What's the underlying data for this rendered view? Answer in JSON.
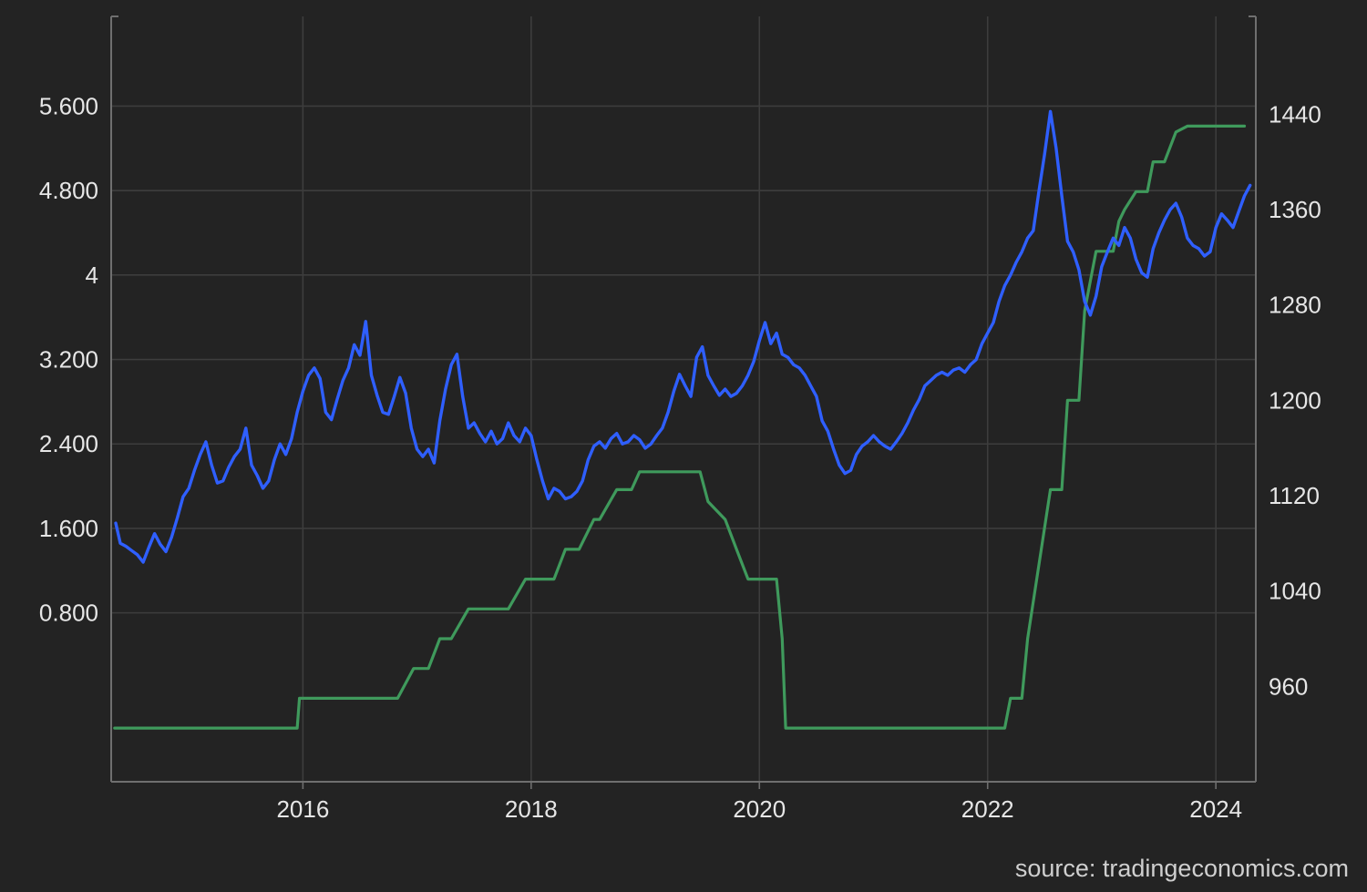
{
  "source_label": "source: tradingeconomics.com",
  "colors": {
    "background": "#232323",
    "grid": "#3d3d3d",
    "axis": "#6f6f6f",
    "tick_text": "#e6e6e6",
    "series_blue": "#2f5fff",
    "series_green": "#3f9a5c"
  },
  "chart_data": {
    "type": "line",
    "grid": true,
    "xlabel": "",
    "ylabel_left": "",
    "ylabel_right": "",
    "x_range": [
      2014.32,
      2024.35
    ],
    "x_ticks": [
      2016,
      2018,
      2020,
      2022,
      2024
    ],
    "x_tick_labels": [
      "2016",
      "2018",
      "2020",
      "2022",
      "2024"
    ],
    "y_left": {
      "range": [
        -0.8,
        6.45
      ],
      "ticks": [
        0.8,
        1.6,
        2.4,
        3.2,
        4,
        4.8,
        5.6
      ],
      "tick_labels": [
        "0.800",
        "1.600",
        "2.400",
        "3.200",
        "4",
        "4.800",
        "5.600"
      ]
    },
    "y_right": {
      "range": [
        880,
        1522
      ],
      "ticks": [
        960,
        1040,
        1120,
        1200,
        1280,
        1360,
        1440
      ],
      "tick_labels": [
        "960",
        "1040",
        "1120",
        "1200",
        "1280",
        "1360",
        "1440"
      ]
    },
    "series": [
      {
        "axis": "left",
        "color": "#2f5fff",
        "x": [
          2014.36,
          2014.4,
          2014.45,
          2014.5,
          2014.55,
          2014.6,
          2014.65,
          2014.7,
          2014.75,
          2014.8,
          2014.85,
          2014.9,
          2014.95,
          2015.0,
          2015.05,
          2015.1,
          2015.15,
          2015.2,
          2015.25,
          2015.3,
          2015.35,
          2015.4,
          2015.45,
          2015.5,
          2015.55,
          2015.6,
          2015.65,
          2015.7,
          2015.75,
          2015.8,
          2015.85,
          2015.9,
          2015.95,
          2016.0,
          2016.05,
          2016.1,
          2016.15,
          2016.2,
          2016.25,
          2016.3,
          2016.35,
          2016.4,
          2016.45,
          2016.5,
          2016.55,
          2016.6,
          2016.65,
          2016.7,
          2016.75,
          2016.8,
          2016.85,
          2016.9,
          2016.95,
          2017.0,
          2017.05,
          2017.1,
          2017.15,
          2017.2,
          2017.25,
          2017.3,
          2017.35,
          2017.4,
          2017.45,
          2017.5,
          2017.55,
          2017.6,
          2017.65,
          2017.7,
          2017.75,
          2017.8,
          2017.85,
          2017.9,
          2017.95,
          2018.0,
          2018.05,
          2018.1,
          2018.15,
          2018.2,
          2018.25,
          2018.3,
          2018.35,
          2018.4,
          2018.45,
          2018.5,
          2018.55,
          2018.6,
          2018.65,
          2018.7,
          2018.75,
          2018.8,
          2018.85,
          2018.9,
          2018.95,
          2019.0,
          2019.05,
          2019.1,
          2019.15,
          2019.2,
          2019.25,
          2019.3,
          2019.35,
          2019.4,
          2019.45,
          2019.5,
          2019.55,
          2019.6,
          2019.65,
          2019.7,
          2019.75,
          2019.8,
          2019.85,
          2019.9,
          2019.95,
          2020.0,
          2020.05,
          2020.1,
          2020.15,
          2020.2,
          2020.25,
          2020.3,
          2020.35,
          2020.4,
          2020.45,
          2020.5,
          2020.55,
          2020.6,
          2020.65,
          2020.7,
          2020.75,
          2020.8,
          2020.85,
          2020.9,
          2020.95,
          2021.0,
          2021.05,
          2021.1,
          2021.15,
          2021.2,
          2021.25,
          2021.3,
          2021.35,
          2021.4,
          2021.45,
          2021.5,
          2021.55,
          2021.6,
          2021.65,
          2021.7,
          2021.75,
          2021.8,
          2021.85,
          2021.9,
          2021.95,
          2022.0,
          2022.05,
          2022.1,
          2022.15,
          2022.2,
          2022.25,
          2022.3,
          2022.35,
          2022.4,
          2022.45,
          2022.5,
          2022.55,
          2022.6,
          2022.65,
          2022.7,
          2022.75,
          2022.8,
          2022.85,
          2022.9,
          2022.95,
          2023.0,
          2023.05,
          2023.1,
          2023.15,
          2023.2,
          2023.25,
          2023.3,
          2023.35,
          2023.4,
          2023.45,
          2023.5,
          2023.55,
          2023.6,
          2023.65,
          2023.7,
          2023.75,
          2023.8,
          2023.85,
          2023.9,
          2023.95,
          2024.0,
          2024.05,
          2024.1,
          2024.15,
          2024.2,
          2024.25,
          2024.3
        ],
        "values": [
          1.65,
          1.46,
          1.43,
          1.39,
          1.35,
          1.28,
          1.42,
          1.55,
          1.45,
          1.38,
          1.52,
          1.7,
          1.9,
          1.98,
          2.15,
          2.3,
          2.42,
          2.2,
          2.03,
          2.05,
          2.18,
          2.28,
          2.35,
          2.55,
          2.2,
          2.1,
          1.98,
          2.05,
          2.25,
          2.4,
          2.3,
          2.45,
          2.7,
          2.9,
          3.05,
          3.12,
          3.02,
          2.7,
          2.63,
          2.82,
          3.0,
          3.12,
          3.34,
          3.24,
          3.56,
          3.05,
          2.86,
          2.7,
          2.68,
          2.85,
          3.03,
          2.88,
          2.55,
          2.35,
          2.28,
          2.35,
          2.22,
          2.62,
          2.92,
          3.15,
          3.25,
          2.85,
          2.55,
          2.6,
          2.5,
          2.42,
          2.52,
          2.4,
          2.45,
          2.6,
          2.48,
          2.42,
          2.55,
          2.48,
          2.25,
          2.05,
          1.88,
          1.98,
          1.95,
          1.88,
          1.9,
          1.95,
          2.05,
          2.25,
          2.38,
          2.42,
          2.36,
          2.45,
          2.5,
          2.4,
          2.42,
          2.48,
          2.44,
          2.36,
          2.4,
          2.48,
          2.55,
          2.7,
          2.9,
          3.06,
          2.95,
          2.85,
          3.22,
          3.32,
          3.05,
          2.95,
          2.86,
          2.92,
          2.85,
          2.88,
          2.95,
          3.05,
          3.18,
          3.38,
          3.55,
          3.35,
          3.45,
          3.25,
          3.22,
          3.15,
          3.12,
          3.05,
          2.95,
          2.85,
          2.62,
          2.52,
          2.35,
          2.2,
          2.12,
          2.15,
          2.3,
          2.38,
          2.42,
          2.48,
          2.42,
          2.38,
          2.35,
          2.42,
          2.5,
          2.6,
          2.72,
          2.82,
          2.95,
          3.0,
          3.05,
          3.08,
          3.05,
          3.1,
          3.12,
          3.08,
          3.15,
          3.2,
          3.35,
          3.45,
          3.55,
          3.75,
          3.9,
          4.0,
          4.12,
          4.22,
          4.35,
          4.42,
          4.8,
          5.15,
          5.55,
          5.2,
          4.75,
          4.32,
          4.22,
          4.05,
          3.75,
          3.62,
          3.8,
          4.08,
          4.22,
          4.35,
          4.28,
          4.45,
          4.35,
          4.15,
          4.02,
          3.98,
          4.25,
          4.4,
          4.52,
          4.62,
          4.68,
          4.55,
          4.35,
          4.28,
          4.25,
          4.18,
          4.22,
          4.45,
          4.58,
          4.52,
          4.45,
          4.6,
          4.75,
          4.85
        ]
      },
      {
        "axis": "right",
        "color": "#3f9a5c",
        "x": [
          2014.35,
          2015.95,
          2015.97,
          2016.83,
          2016.97,
          2017.1,
          2017.2,
          2017.3,
          2017.45,
          2017.8,
          2017.95,
          2018.2,
          2018.3,
          2018.42,
          2018.55,
          2018.6,
          2018.75,
          2018.88,
          2018.95,
          2019.05,
          2019.15,
          2019.25,
          2019.35,
          2019.48,
          2019.55,
          2019.7,
          2019.8,
          2019.9,
          2020.0,
          2020.15,
          2020.2,
          2020.23,
          2021.9,
          2022.15,
          2022.2,
          2022.3,
          2022.35,
          2022.55,
          2022.65,
          2022.7,
          2022.8,
          2022.85,
          2022.9,
          2022.95,
          2023.0,
          2023.1,
          2023.15,
          2023.2,
          2023.3,
          2023.4,
          2023.45,
          2023.55,
          2023.65,
          2023.75,
          2024.25
        ],
        "values": [
          925,
          925,
          950,
          950,
          975,
          975,
          1000,
          1000,
          1025,
          1025,
          1050,
          1050,
          1075,
          1075,
          1100,
          1100,
          1125,
          1125,
          1140,
          1140,
          1140,
          1140,
          1140,
          1140,
          1115,
          1100,
          1075,
          1050,
          1050,
          1050,
          1000,
          925,
          925,
          925,
          950,
          950,
          1000,
          1125,
          1125,
          1200,
          1200,
          1275,
          1300,
          1325,
          1325,
          1325,
          1350,
          1360,
          1375,
          1375,
          1400,
          1400,
          1425,
          1430,
          1430
        ]
      }
    ]
  }
}
